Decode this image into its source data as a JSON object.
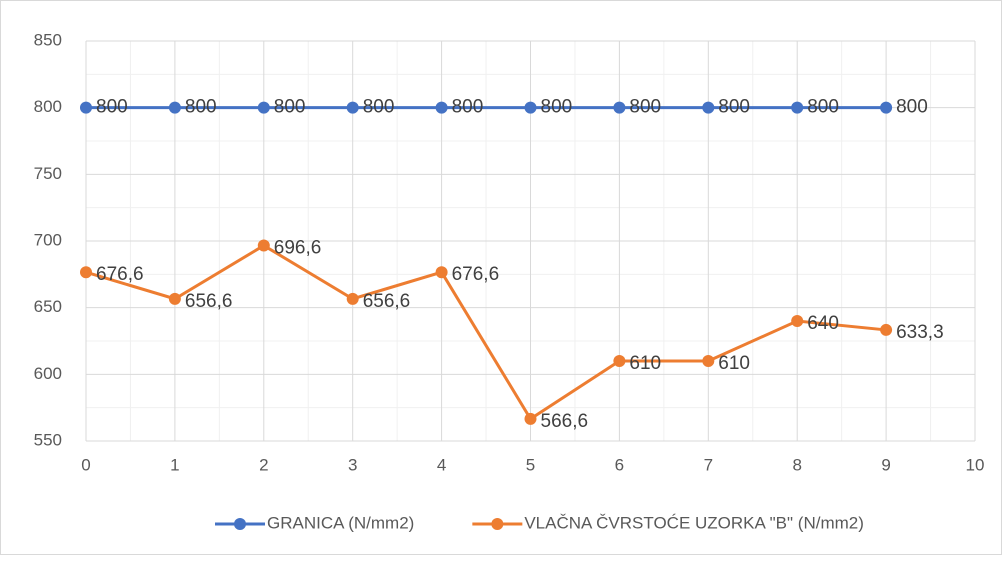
{
  "chart_data": {
    "type": "line",
    "x": [
      0,
      1,
      2,
      3,
      4,
      5,
      6,
      7,
      8,
      9
    ],
    "series": [
      {
        "name": "GRANICA (N/mm2)",
        "color": "#4472c4",
        "values": [
          800,
          800,
          800,
          800,
          800,
          800,
          800,
          800,
          800,
          800
        ]
      },
      {
        "name": "VLAČNA ČVRSTOĆE UZORKA \"B\" (N/mm2)",
        "color": "#ed7d31",
        "values": [
          676.6,
          656.6,
          696.6,
          656.6,
          676.6,
          566.6,
          610,
          610,
          640,
          633.3
        ],
        "value_labels": [
          "676,6",
          "656,6",
          "696,6",
          "656,6",
          "676,6",
          "566,6",
          "610",
          "610",
          "640",
          "633,3"
        ]
      }
    ],
    "xlim": [
      0,
      10
    ],
    "xticks": [
      0,
      1,
      2,
      3,
      4,
      5,
      6,
      7,
      8,
      9,
      10
    ],
    "ylim": [
      550,
      850
    ],
    "yticks": [
      550,
      600,
      650,
      700,
      750,
      800,
      850
    ],
    "grid": true,
    "minor_grid": true,
    "legend": "bottom"
  }
}
